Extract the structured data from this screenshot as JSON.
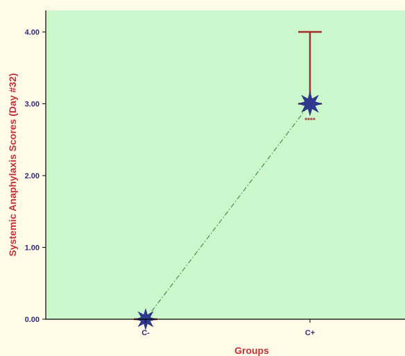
{
  "chart_data": {
    "type": "line",
    "categories": [
      "C-",
      "C+"
    ],
    "series": [
      {
        "values": [
          0.0,
          3.0
        ],
        "error_upper": [
          0.0,
          4.0
        ]
      }
    ],
    "annotations": [
      {
        "category": "C+",
        "text": "****"
      }
    ],
    "xlabel": "Groups",
    "ylabel": "Systemic Anaphylaxis Scores (Day #32)",
    "ylim": [
      0,
      4.3
    ],
    "yticks": [
      "0.00",
      "1.00",
      "2.00",
      "3.00",
      "4.00"
    ],
    "grid": false,
    "colors": {
      "plot_background": "#ccf7cc",
      "page_background": "#fffbe6",
      "marker": "#2f3a8f",
      "error_bar": "#a52a2a",
      "connector": "#2e7d32",
      "axis_title": "#c0303a",
      "tick_label": "#2b2b7a"
    }
  }
}
